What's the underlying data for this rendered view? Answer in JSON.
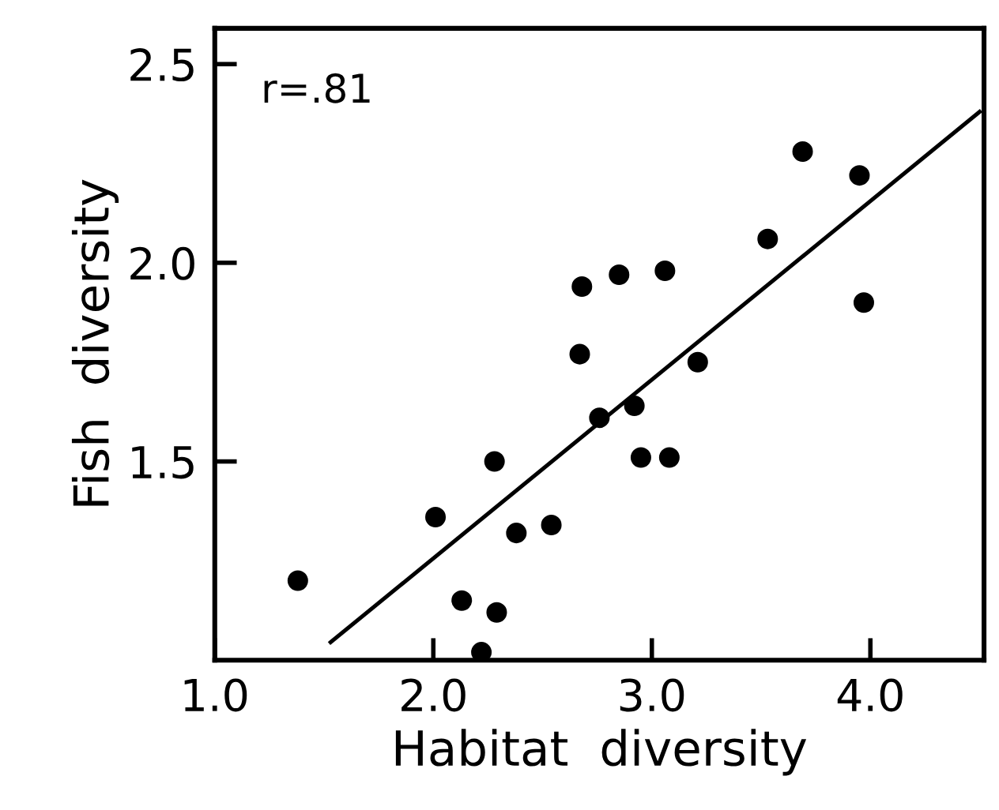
{
  "chart_data": {
    "type": "scatter",
    "xlabel": "Habitat  diversity",
    "ylabel": "Fish  diversity",
    "annotations": [
      "r=.81"
    ],
    "series": [
      {
        "color": "#000000",
        "marker": "circle",
        "x": [
          1.38,
          2.01,
          2.13,
          2.22,
          2.28,
          2.29,
          2.38,
          2.54,
          2.67,
          2.68,
          2.76,
          2.85,
          2.92,
          2.95,
          3.06,
          3.08,
          3.21,
          3.53,
          3.69,
          3.95,
          3.97
        ],
        "values": [
          1.2,
          1.36,
          1.15,
          1.02,
          1.5,
          1.12,
          1.32,
          1.34,
          1.77,
          1.94,
          1.61,
          1.97,
          1.64,
          1.51,
          1.98,
          1.51,
          1.75,
          2.06,
          2.28,
          2.22,
          1.9
        ]
      },
      {
        "type": "line",
        "color": "#000000",
        "marker": "none",
        "x": [
          1.53,
          4.5
        ],
        "values": [
          1.045,
          2.38
        ]
      }
    ],
    "xlim": [
      1.0,
      4.52
    ],
    "ylim": [
      1.0,
      2.59
    ],
    "xticks": [
      {
        "value": 1.0,
        "label": "1.0"
      },
      {
        "value": 2.0,
        "label": "2.0"
      },
      {
        "value": 3.0,
        "label": "3.0"
      },
      {
        "value": 4.0,
        "label": "4.0"
      }
    ],
    "yticks": [
      1.5,
      {
        "value": 2.0,
        "label": "2.0"
      },
      2.5
    ],
    "grid": false,
    "legend": false
  }
}
